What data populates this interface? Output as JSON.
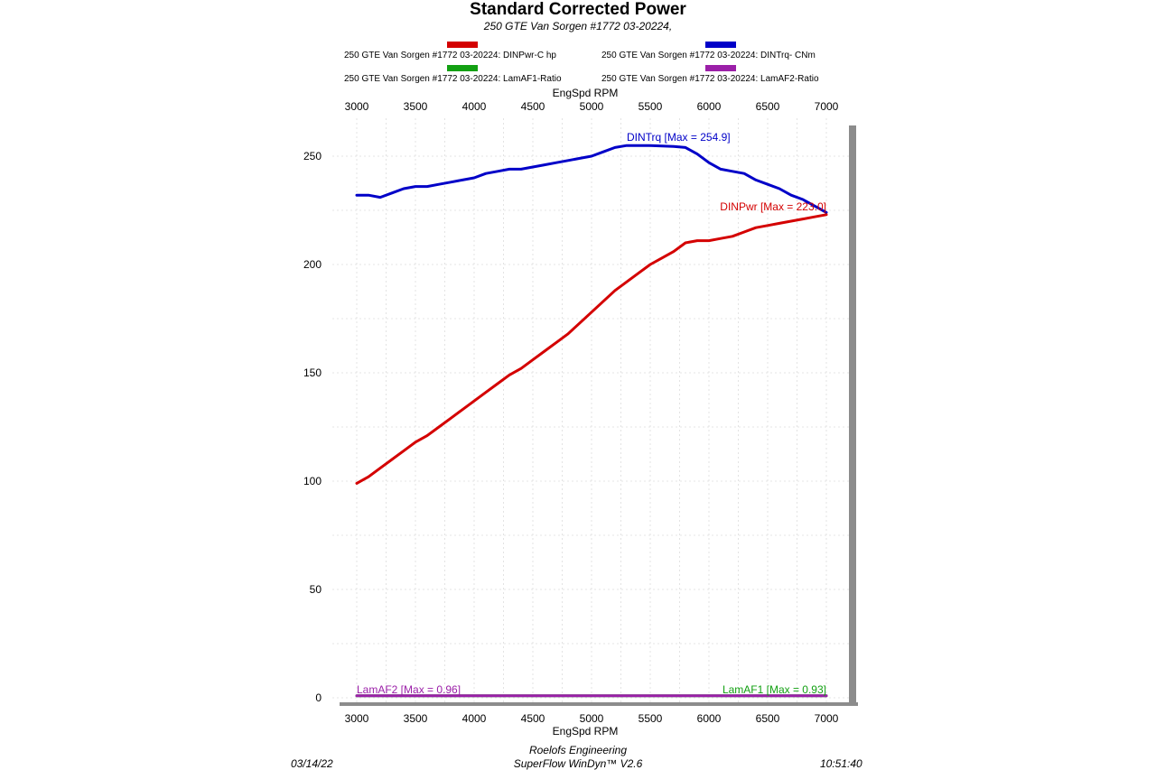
{
  "header": {
    "title": "Standard Corrected Power",
    "subtitle": "250 GTE Van Sorgen #1772 03-20224,"
  },
  "legend": [
    {
      "label": "250 GTE Van Sorgen #1772 03-20224: DINPwr-C hp",
      "color": "#d40000"
    },
    {
      "label": "250 GTE Van Sorgen #1772 03-20224: DINTrq- CNm",
      "color": "#0000c8"
    },
    {
      "label": "250 GTE Van Sorgen #1772 03-20224: LamAF1-Ratio",
      "color": "#12a012"
    },
    {
      "label": "250 GTE Van Sorgen #1772 03-20224: LamAF2-Ratio",
      "color": "#9b1fa8"
    }
  ],
  "chart_data": {
    "type": "line",
    "xlabel": "EngSpd  RPM",
    "ylabel": "",
    "xlim": [
      3000,
      7000
    ],
    "ylim": [
      0,
      260
    ],
    "xticks": [
      "3000",
      "3500",
      "4000",
      "4500",
      "5000",
      "5500",
      "6000",
      "6500",
      "7000"
    ],
    "yticks": [
      "0",
      "50",
      "100",
      "150",
      "200",
      "250"
    ],
    "grid": true,
    "series": [
      {
        "name": "DINTrq",
        "color": "#0000c8",
        "x": [
          3000,
          3100,
          3200,
          3300,
          3400,
          3500,
          3600,
          3700,
          3800,
          3900,
          4000,
          4100,
          4200,
          4300,
          4400,
          4500,
          4600,
          4700,
          4800,
          4900,
          5000,
          5100,
          5200,
          5300,
          5400,
          5500,
          5600,
          5700,
          5800,
          5900,
          6000,
          6100,
          6200,
          6300,
          6400,
          6500,
          6600,
          6700,
          6800,
          6900,
          7000
        ],
        "y": [
          232,
          232,
          231,
          233,
          235,
          236,
          236,
          237,
          238,
          239,
          240,
          242,
          243,
          244,
          244,
          245,
          246,
          247,
          248,
          249,
          250,
          252,
          254,
          254.9,
          254.9,
          254.9,
          254.7,
          254.5,
          254,
          251,
          247,
          244,
          243,
          242,
          239,
          237,
          235,
          232,
          230,
          227,
          224
        ]
      },
      {
        "name": "DINPwr",
        "color": "#d40000",
        "x": [
          3000,
          3100,
          3200,
          3300,
          3400,
          3500,
          3600,
          3700,
          3800,
          3900,
          4000,
          4100,
          4200,
          4300,
          4400,
          4500,
          4600,
          4700,
          4800,
          4900,
          5000,
          5100,
          5200,
          5300,
          5400,
          5500,
          5600,
          5700,
          5800,
          5900,
          6000,
          6100,
          6200,
          6300,
          6400,
          6500,
          6600,
          6700,
          6800,
          6900,
          7000
        ],
        "y": [
          99,
          102,
          106,
          110,
          114,
          118,
          121,
          125,
          129,
          133,
          137,
          141,
          145,
          149,
          152,
          156,
          160,
          164,
          168,
          173,
          178,
          183,
          188,
          192,
          196,
          200,
          203,
          206,
          210,
          211,
          211,
          212,
          213,
          215,
          217,
          218,
          219,
          220,
          221,
          222,
          223
        ]
      },
      {
        "name": "LamAF1",
        "color": "#12a012",
        "x": [
          3000,
          7000
        ],
        "y": [
          0.93,
          0.93
        ]
      },
      {
        "name": "LamAF2",
        "color": "#9b1fa8",
        "x": [
          3000,
          7000
        ],
        "y": [
          0.96,
          0.96
        ]
      }
    ],
    "annotations": [
      {
        "text": "DINTrq [Max = 254.9]",
        "color": "#0000c8",
        "x": 5300,
        "y": 257
      },
      {
        "text": "DINPwr [Max = 223.0]",
        "color": "#d40000",
        "x": 7000,
        "y": 225
      },
      {
        "text": "LamAF2 [Max = 0.96]",
        "color": "#9b1fa8",
        "x": 3000,
        "y": 2
      },
      {
        "text": "LamAF1 [Max = 0.93]",
        "color": "#12a012",
        "x": 7000,
        "y": 2
      }
    ]
  },
  "footer": {
    "date": "03/14/22",
    "company": "Roelofs Engineering",
    "software": "SuperFlow WinDyn™ V2.6",
    "time": "10:51:40"
  }
}
